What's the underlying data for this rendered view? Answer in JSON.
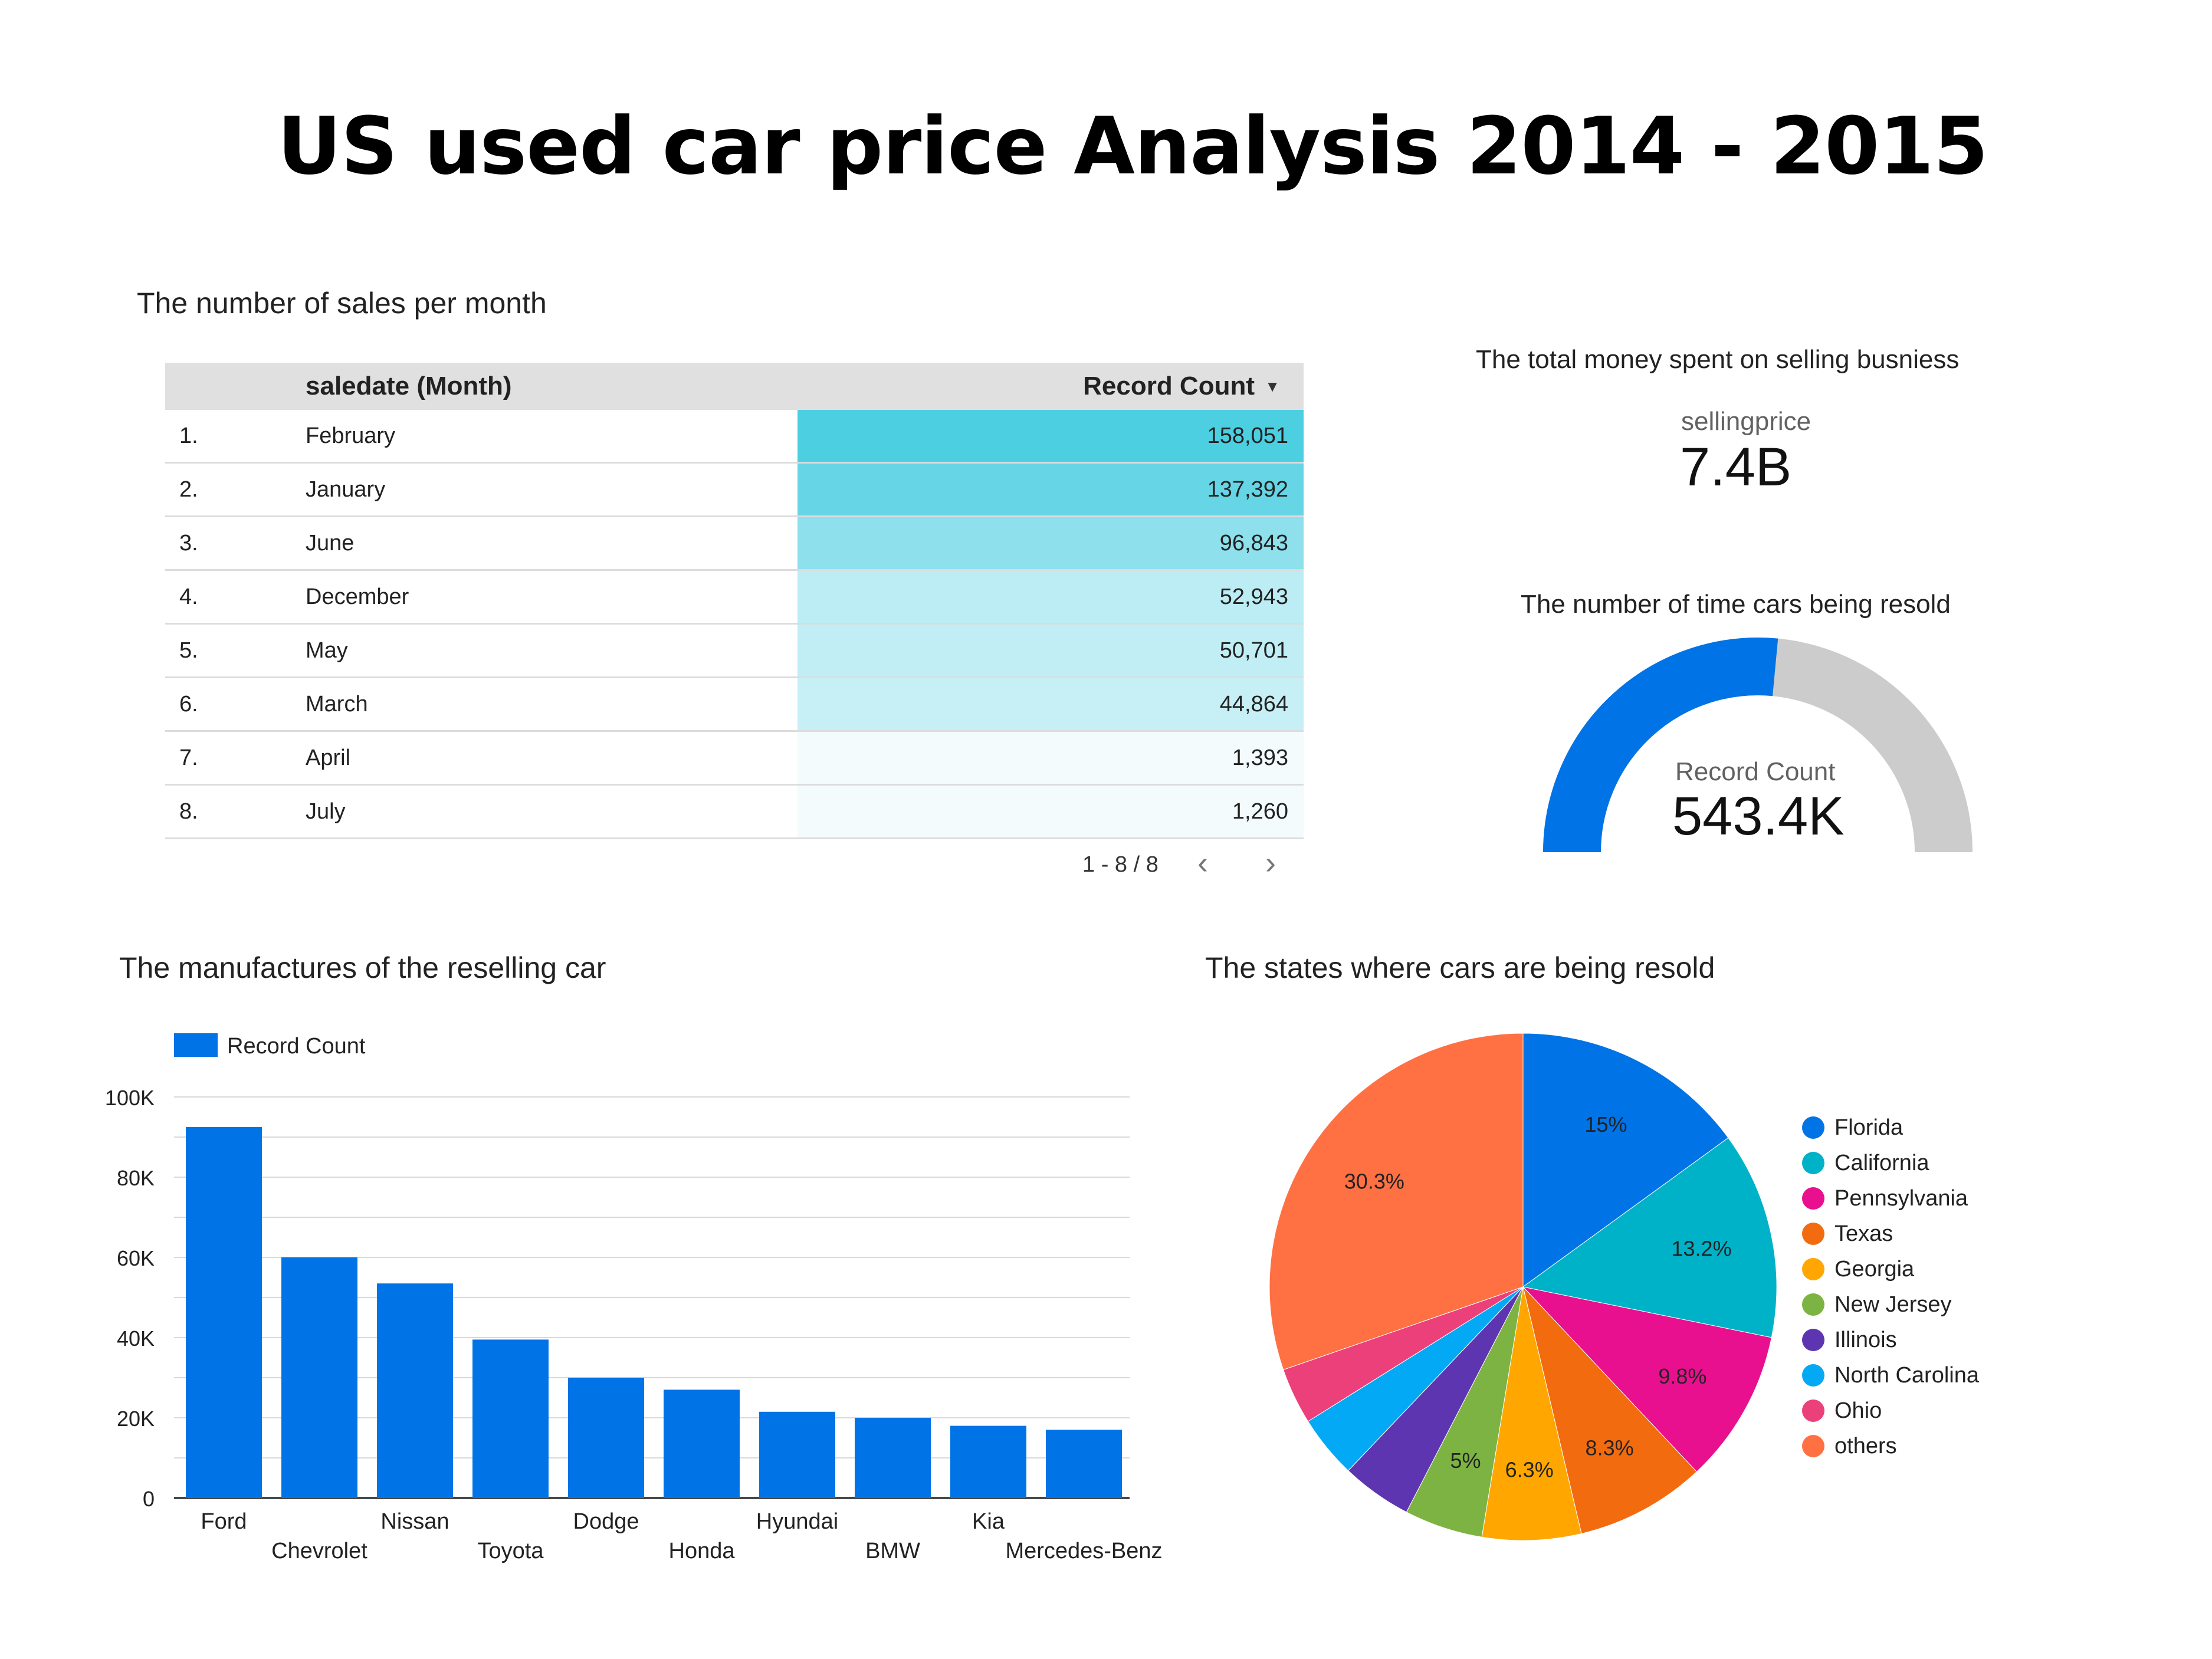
{
  "title": "US used car price Analysis 2014 - 2015",
  "colors": {
    "accent": "#0073e6",
    "gauge_track": "#cccccc",
    "table_header": "#e0e0e0"
  },
  "sales_table": {
    "title": "The number of sales per month",
    "headers": {
      "month": "saledate (Month)",
      "count": "Record Count",
      "sort_icon": "sort-descending-icon"
    },
    "rows": [
      {
        "index": "1.",
        "month": "February",
        "count": "158,051",
        "color": "#4ccfe1"
      },
      {
        "index": "2.",
        "month": "January",
        "count": "137,392",
        "color": "#66d5e5"
      },
      {
        "index": "3.",
        "month": "June",
        "count": "96,843",
        "color": "#8de0ec"
      },
      {
        "index": "4.",
        "month": "December",
        "count": "52,943",
        "color": "#bdedf4"
      },
      {
        "index": "5.",
        "month": "May",
        "count": "50,701",
        "color": "#c0eef4"
      },
      {
        "index": "6.",
        "month": "March",
        "count": "44,864",
        "color": "#c6f0f5"
      },
      {
        "index": "7.",
        "month": "April",
        "count": "1,393",
        "color": "#f3fbfd"
      },
      {
        "index": "8.",
        "month": "July",
        "count": "1,260",
        "color": "#f3fbfd"
      }
    ],
    "pagination": {
      "text": "1 - 8 / 8",
      "prev_icon": "chevron-left-icon",
      "next_icon": "chevron-right-icon"
    }
  },
  "scorecard": {
    "title": "The total money spent on selling busniess",
    "label": "sellingprice",
    "value": "7.4B"
  },
  "gauge": {
    "title": "The number of time cars being resold",
    "label": "Record Count",
    "value": "543.4K",
    "fill_fraction": 0.53
  },
  "chart_data": [
    {
      "type": "bar",
      "title": "The  manufactures of the reselling car",
      "legend": "Record Count",
      "legend_position": "top-left",
      "categories": [
        "Ford",
        "Chevrolet",
        "Nissan",
        "Toyota",
        "Dodge",
        "Honda",
        "Hyundai",
        "BMW",
        "Kia",
        "Mercedes-Benz"
      ],
      "values": [
        92500,
        60000,
        53500,
        39500,
        30000,
        27000,
        21500,
        20000,
        18000,
        17000
      ],
      "yticks": [
        "0",
        "20K",
        "40K",
        "60K",
        "80K",
        "100K"
      ],
      "ylim": [
        0,
        100000
      ],
      "grid": true
    },
    {
      "type": "pie",
      "title": "The states where cars are being resold",
      "legend_position": "right",
      "slices": [
        {
          "label": "Florida",
          "value": 15,
          "text": "15%",
          "color": "#0073e6"
        },
        {
          "label": "California",
          "value": 13.2,
          "text": "13.2%",
          "color": "#00b2c8"
        },
        {
          "label": "Pennsylvania",
          "value": 9.8,
          "text": "9.8%",
          "color": "#e8108e"
        },
        {
          "label": "Texas",
          "value": 8.3,
          "text": "8.3%",
          "color": "#f26b0f"
        },
        {
          "label": "Georgia",
          "value": 6.3,
          "text": "6.3%",
          "color": "#ffa700"
        },
        {
          "label": "New Jersey",
          "value": 5,
          "text": "5%",
          "color": "#7cb342"
        },
        {
          "label": "Illinois",
          "value": 4.5,
          "text": "",
          "color": "#5e35b1"
        },
        {
          "label": "North Carolina",
          "value": 4,
          "text": "",
          "color": "#03a9f4"
        },
        {
          "label": "Ohio",
          "value": 3.6,
          "text": "",
          "color": "#ec407a"
        },
        {
          "label": "others",
          "value": 30.3,
          "text": "30.3%",
          "color": "#ff7043"
        }
      ]
    }
  ]
}
